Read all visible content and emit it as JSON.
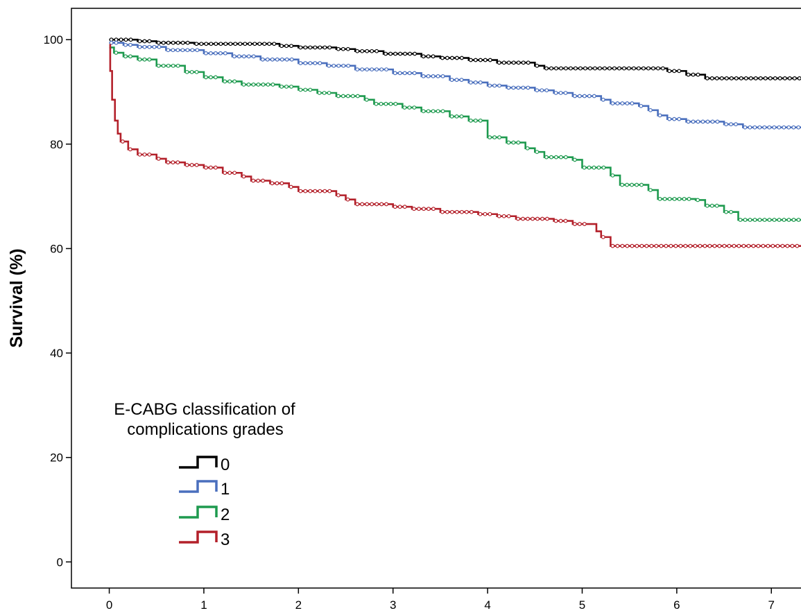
{
  "chart_data": {
    "type": "line",
    "title": "",
    "xlabel": "",
    "ylabel": "Survival (%)",
    "xlim": [
      -0.4,
      7.35
    ],
    "ylim": [
      -5,
      106
    ],
    "x_ticks": [
      0,
      1,
      2,
      3,
      4,
      5,
      6,
      7
    ],
    "y_ticks": [
      0,
      20,
      40,
      60,
      80,
      100
    ],
    "grid": false,
    "legend": {
      "title": [
        "E-CABG classification of",
        "complications grades"
      ],
      "position": "bottom-left"
    },
    "series": [
      {
        "name": "0",
        "color": "#000000",
        "steps": [
          [
            0,
            100
          ],
          [
            0.3,
            99.7
          ],
          [
            0.5,
            99.4
          ],
          [
            0.9,
            99.2
          ],
          [
            1.8,
            98.8
          ],
          [
            2.0,
            98.5
          ],
          [
            2.4,
            98.2
          ],
          [
            2.6,
            97.8
          ],
          [
            2.9,
            97.3
          ],
          [
            3.3,
            96.8
          ],
          [
            3.5,
            96.5
          ],
          [
            3.8,
            96.1
          ],
          [
            4.1,
            95.6
          ],
          [
            4.5,
            95.0
          ],
          [
            4.6,
            94.5
          ],
          [
            5.9,
            94.0
          ],
          [
            6.1,
            93.3
          ],
          [
            6.3,
            92.6
          ],
          [
            7.35,
            92.6
          ]
        ]
      },
      {
        "name": "1",
        "color": "#4a6fbd",
        "steps": [
          [
            0,
            99.4
          ],
          [
            0.15,
            99.0
          ],
          [
            0.3,
            98.6
          ],
          [
            0.6,
            98.0
          ],
          [
            1.0,
            97.4
          ],
          [
            1.3,
            96.8
          ],
          [
            1.6,
            96.2
          ],
          [
            2.0,
            95.5
          ],
          [
            2.3,
            95.0
          ],
          [
            2.6,
            94.3
          ],
          [
            3.0,
            93.6
          ],
          [
            3.3,
            93.0
          ],
          [
            3.6,
            92.3
          ],
          [
            3.8,
            91.8
          ],
          [
            4.0,
            91.2
          ],
          [
            4.2,
            90.8
          ],
          [
            4.5,
            90.3
          ],
          [
            4.7,
            89.8
          ],
          [
            4.9,
            89.2
          ],
          [
            5.2,
            88.5
          ],
          [
            5.3,
            87.8
          ],
          [
            5.6,
            87.3
          ],
          [
            5.7,
            86.5
          ],
          [
            5.8,
            85.5
          ],
          [
            5.9,
            84.8
          ],
          [
            6.1,
            84.3
          ],
          [
            6.5,
            83.8
          ],
          [
            6.7,
            83.2
          ],
          [
            7.35,
            83.2
          ]
        ]
      },
      {
        "name": "2",
        "color": "#1e9a4f",
        "steps": [
          [
            0,
            98.5
          ],
          [
            0.05,
            97.5
          ],
          [
            0.15,
            96.8
          ],
          [
            0.3,
            96.2
          ],
          [
            0.5,
            95.0
          ],
          [
            0.8,
            93.8
          ],
          [
            1.0,
            92.8
          ],
          [
            1.2,
            92.0
          ],
          [
            1.4,
            91.4
          ],
          [
            1.8,
            91.0
          ],
          [
            2.0,
            90.4
          ],
          [
            2.2,
            89.8
          ],
          [
            2.4,
            89.2
          ],
          [
            2.7,
            88.5
          ],
          [
            2.8,
            87.7
          ],
          [
            3.1,
            87.0
          ],
          [
            3.3,
            86.3
          ],
          [
            3.6,
            85.3
          ],
          [
            3.8,
            84.5
          ],
          [
            4.0,
            83.3
          ],
          [
            4.0,
            81.3
          ],
          [
            4.2,
            80.3
          ],
          [
            4.4,
            79.2
          ],
          [
            4.5,
            78.5
          ],
          [
            4.6,
            77.5
          ],
          [
            4.9,
            77.0
          ],
          [
            5.0,
            75.5
          ],
          [
            5.3,
            74.0
          ],
          [
            5.4,
            72.2
          ],
          [
            5.7,
            71.2
          ],
          [
            5.8,
            69.5
          ],
          [
            6.2,
            69.3
          ],
          [
            6.3,
            68.2
          ],
          [
            6.5,
            67.0
          ],
          [
            6.65,
            65.5
          ],
          [
            7.35,
            65.5
          ]
        ]
      },
      {
        "name": "3",
        "color": "#b3202a",
        "steps": [
          [
            0,
            99.0
          ],
          [
            0.01,
            94.0
          ],
          [
            0.03,
            88.5
          ],
          [
            0.06,
            84.5
          ],
          [
            0.09,
            82.0
          ],
          [
            0.12,
            80.5
          ],
          [
            0.2,
            79.0
          ],
          [
            0.3,
            78.0
          ],
          [
            0.5,
            77.2
          ],
          [
            0.6,
            76.5
          ],
          [
            0.8,
            76.0
          ],
          [
            1.0,
            75.5
          ],
          [
            1.2,
            74.5
          ],
          [
            1.4,
            73.8
          ],
          [
            1.5,
            73.0
          ],
          [
            1.7,
            72.5
          ],
          [
            1.9,
            71.8
          ],
          [
            2.0,
            71.0
          ],
          [
            2.4,
            70.2
          ],
          [
            2.5,
            69.4
          ],
          [
            2.6,
            68.5
          ],
          [
            3.0,
            68.0
          ],
          [
            3.2,
            67.6
          ],
          [
            3.5,
            67.0
          ],
          [
            3.9,
            66.6
          ],
          [
            4.1,
            66.2
          ],
          [
            4.3,
            65.7
          ],
          [
            4.7,
            65.3
          ],
          [
            4.9,
            64.7
          ],
          [
            5.1,
            64.7
          ],
          [
            5.15,
            63.3
          ],
          [
            5.2,
            62.2
          ],
          [
            5.3,
            60.5
          ],
          [
            7.35,
            60.5
          ]
        ]
      }
    ]
  }
}
